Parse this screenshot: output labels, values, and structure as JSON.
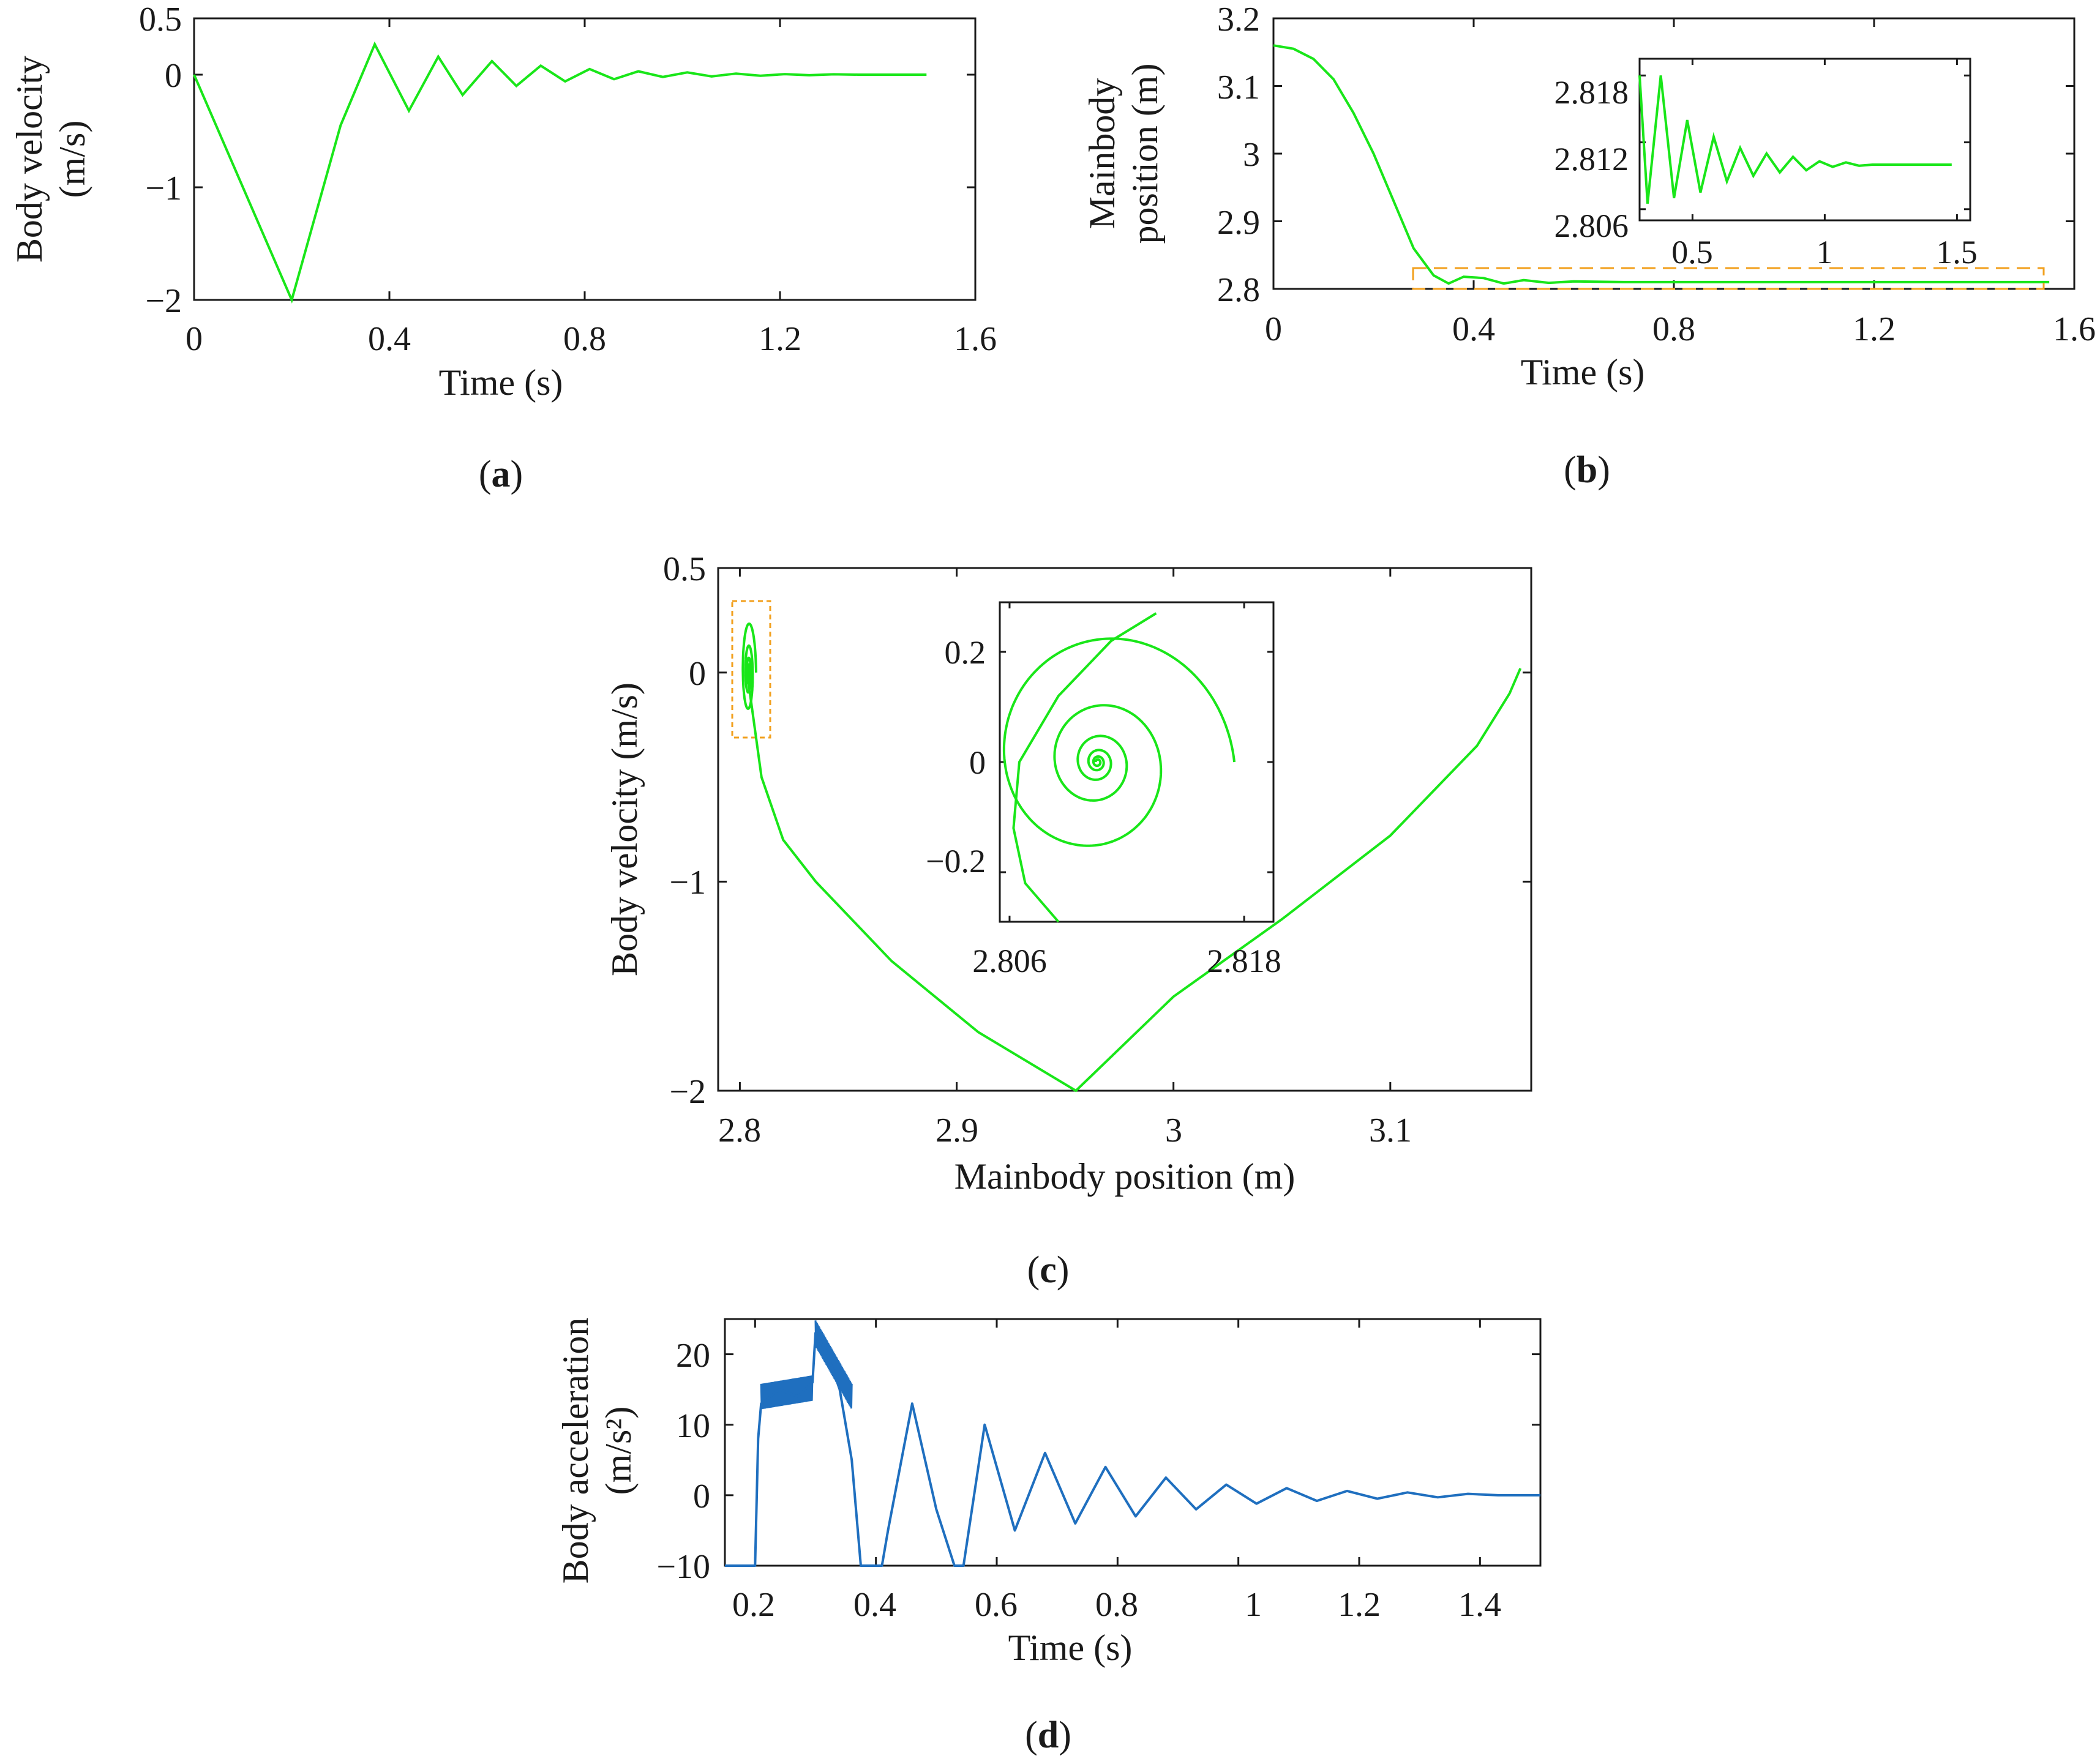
{
  "colors": {
    "green": "#19e619",
    "blue": "#1f6fbf",
    "orange": "#f2a01e",
    "axis": "#1a1a1a"
  },
  "chart_data": [
    {
      "id": "a",
      "type": "line",
      "caption": "a",
      "title": "",
      "xlabel": "Time (s)",
      "ylabel": [
        "Body velocity",
        "(m/s)"
      ],
      "xlim": [
        0,
        1.6
      ],
      "ylim": [
        -2,
        0.5
      ],
      "xticks": [
        0,
        0.4,
        0.8,
        1.2,
        1.6
      ],
      "xtick_labels": [
        "0",
        "0.4",
        "0.8",
        "1.2",
        "1.6"
      ],
      "yticks": [
        -2,
        -1,
        0,
        0.5
      ],
      "ytick_labels": [
        "−2",
        "−1",
        "0",
        "0.5"
      ],
      "series": [
        {
          "name": "body velocity",
          "color": "#19e619",
          "x": [
            0,
            0.2,
            0.3,
            0.37,
            0.44,
            0.5,
            0.55,
            0.61,
            0.66,
            0.71,
            0.76,
            0.81,
            0.86,
            0.91,
            0.96,
            1.01,
            1.06,
            1.11,
            1.16,
            1.21,
            1.26,
            1.31,
            1.36,
            1.5
          ],
          "y": [
            0,
            -2,
            -0.45,
            0.27,
            -0.32,
            0.16,
            -0.18,
            0.12,
            -0.1,
            0.08,
            -0.06,
            0.05,
            -0.04,
            0.03,
            -0.02,
            0.02,
            -0.015,
            0.01,
            -0.01,
            0.005,
            -0.005,
            0.003,
            0,
            0
          ]
        }
      ]
    },
    {
      "id": "b",
      "type": "line",
      "caption": "b",
      "title": "",
      "xlabel": "Time (s)",
      "ylabel": [
        "Mainbody",
        "position (m)"
      ],
      "xlim": [
        0,
        1.6
      ],
      "ylim": [
        2.8,
        3.2
      ],
      "xticks": [
        0,
        0.4,
        0.8,
        1.2,
        1.6
      ],
      "xtick_labels": [
        "0",
        "0.4",
        "0.8",
        "1.2",
        "1.6"
      ],
      "yticks": [
        2.8,
        2.9,
        3,
        3.1,
        3.2
      ],
      "ytick_labels": [
        "2.8",
        "2.9",
        "3",
        "3.1",
        "3.2"
      ],
      "series": [
        {
          "name": "mainbody position",
          "color": "#19e619",
          "x": [
            0,
            0.04,
            0.08,
            0.12,
            0.16,
            0.2,
            0.24,
            0.28,
            0.32,
            0.35,
            0.38,
            0.42,
            0.46,
            0.5,
            0.55,
            0.6,
            0.7,
            0.8,
            1.0,
            1.2,
            1.55
          ],
          "y": [
            3.16,
            3.155,
            3.14,
            3.11,
            3.06,
            3.0,
            2.93,
            2.86,
            2.82,
            2.808,
            2.818,
            2.816,
            2.808,
            2.813,
            2.809,
            2.811,
            2.81,
            2.81,
            2.81,
            2.81,
            2.81
          ]
        }
      ],
      "zoom_box": {
        "xlim": [
          0.28,
          1.55
        ],
        "ylim": [
          2.8,
          2.83
        ],
        "color": "#f2a01e"
      },
      "inset": {
        "xlim": [
          0.3,
          1.55
        ],
        "ylim": [
          2.805,
          2.8195
        ],
        "xticks": [
          0.5,
          1,
          1.5
        ],
        "xtick_labels": [
          "0.5",
          "1",
          "1.5"
        ],
        "yticks": [
          2.806,
          2.812,
          2.818
        ],
        "ytick_labels": [
          "2.806",
          "2.812",
          "2.818"
        ],
        "series": [
          {
            "name": "mainbody position (zoom)",
            "color": "#19e619",
            "x": [
              0.3,
              0.33,
              0.38,
              0.43,
              0.48,
              0.53,
              0.58,
              0.63,
              0.68,
              0.73,
              0.78,
              0.83,
              0.88,
              0.93,
              0.98,
              1.03,
              1.08,
              1.13,
              1.18,
              1.3,
              1.48
            ],
            "y": [
              2.818,
              2.8065,
              2.818,
              2.807,
              2.814,
              2.8075,
              2.8125,
              2.8085,
              2.8115,
              2.809,
              2.811,
              2.8093,
              2.8107,
              2.8095,
              2.8103,
              2.8098,
              2.8102,
              2.8099,
              2.81,
              2.81,
              2.81
            ]
          }
        ]
      }
    },
    {
      "id": "c",
      "type": "line",
      "caption": "c",
      "title": "",
      "xlabel": "Mainbody position (m)",
      "ylabel": [
        "Body velocity (m/s)"
      ],
      "xlim": [
        2.79,
        3.165
      ],
      "ylim": [
        -2,
        0.5
      ],
      "xticks": [
        2.8,
        2.9,
        3,
        3.1
      ],
      "xtick_labels": [
        "2.8",
        "2.9",
        "3",
        "3.1"
      ],
      "yticks": [
        -2,
        -1,
        0,
        0.5
      ],
      "ytick_labels": [
        "−2",
        "−1",
        "0",
        "0.5"
      ],
      "series": [
        {
          "name": "phase trajectory",
          "color": "#19e619",
          "x": [
            3.16,
            3.155,
            3.14,
            3.1,
            3.05,
            3.0,
            2.955,
            2.91,
            2.87,
            2.835,
            2.82,
            2.81,
            2.804
          ],
          "y": [
            0.02,
            -0.1,
            -0.35,
            -0.78,
            -1.18,
            -1.55,
            -2.0,
            -1.72,
            -1.38,
            -1.0,
            -0.8,
            -0.5,
            -0.05
          ]
        }
      ],
      "zoom_box": {
        "xlim": [
          2.795,
          2.812
        ],
        "ylim": [
          -0.33,
          0.33
        ],
        "color": "#f2a01e"
      },
      "inset": {
        "xlim": [
          2.8055,
          2.8195
        ],
        "ylim": [
          -0.29,
          0.29
        ],
        "xticks": [
          2.806,
          2.818
        ],
        "xtick_labels": [
          "2.806",
          "2.818"
        ],
        "yticks": [
          -0.2,
          0,
          0.2
        ],
        "ytick_labels": [
          "−0.2",
          "0",
          "0.2"
        ],
        "spiral_center": [
          2.8105,
          0.0
        ],
        "spiral": {
          "x_amplitude": 0.007,
          "y_amplitude": 0.27,
          "decay": 0.46,
          "turns": 5.5
        }
      }
    },
    {
      "id": "d",
      "type": "line",
      "caption": "d",
      "title": "",
      "xlabel": "Time (s)",
      "ylabel": [
        "Body acceleration",
        "(m/s²)"
      ],
      "xlim": [
        0.15,
        1.5
      ],
      "ylim": [
        -10,
        25
      ],
      "xticks": [
        0.2,
        0.4,
        0.6,
        0.8,
        1,
        1.2,
        1.4
      ],
      "xtick_labels": [
        "0.2",
        "0.4",
        "0.6",
        "0.8",
        "1",
        "1.2",
        "1.4"
      ],
      "yticks": [
        -10,
        0,
        10,
        20
      ],
      "ytick_labels": [
        "−10",
        "0",
        "10",
        "20"
      ],
      "series": [
        {
          "name": "body acceleration",
          "color": "#1f6fbf",
          "x": [
            0.15,
            0.2,
            0.205,
            0.21,
            0.24,
            0.27,
            0.295,
            0.3,
            0.32,
            0.34,
            0.36,
            0.375,
            0.38,
            0.41,
            0.42,
            0.46,
            0.5,
            0.53,
            0.545,
            0.58,
            0.63,
            0.68,
            0.73,
            0.78,
            0.83,
            0.88,
            0.93,
            0.98,
            1.03,
            1.08,
            1.13,
            1.18,
            1.23,
            1.28,
            1.33,
            1.38,
            1.43,
            1.5
          ],
          "y": [
            -10,
            -10,
            8,
            13,
            15,
            14,
            16,
            23,
            20,
            15,
            5,
            -10,
            -10,
            -10,
            -5,
            13,
            -2,
            -10,
            -10,
            10,
            -5,
            6,
            -4,
            4,
            -3,
            2.5,
            -2,
            1.5,
            -1.2,
            1,
            -0.8,
            0.6,
            -0.5,
            0.4,
            -0.3,
            0.2,
            0,
            0
          ]
        }
      ]
    }
  ]
}
